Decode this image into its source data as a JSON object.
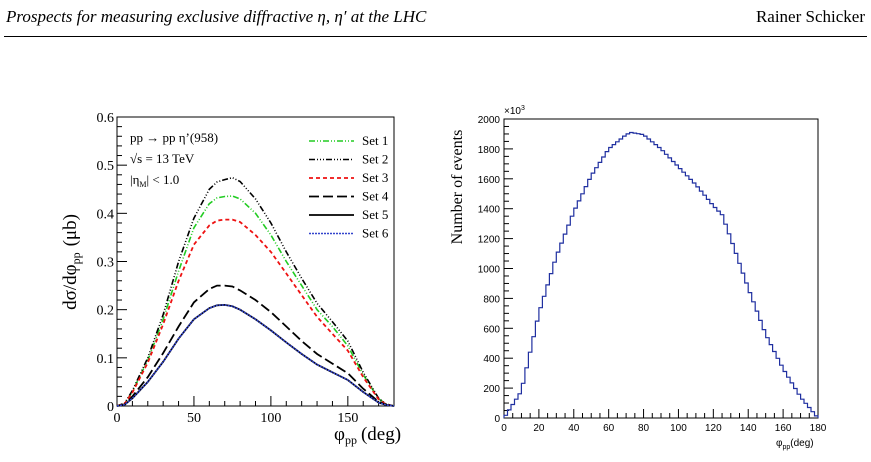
{
  "header": {
    "title": "Prospects for measuring exclusive diffractive η, η′ at the LHC",
    "author": "Rainer Schicker"
  },
  "chart_data": [
    {
      "type": "line",
      "process": "pp → pp η’(958)",
      "energy_root": "√s",
      "energy_value": " = 13 TeV",
      "cut_pre": "|η",
      "cut_sub": "M",
      "cut_post": "| < 1.0",
      "ylabel_main": "dσ/dφ",
      "ylabel_sub": "pp",
      "ylabel_unit": "(μb)",
      "xlabel_main": "φ",
      "xlabel_sub": "pp",
      "xlabel_unit": "(deg)",
      "xlim": [
        0,
        180
      ],
      "ylim": [
        0,
        0.6
      ],
      "xticks": [
        "0",
        "50",
        "100",
        "150"
      ],
      "yticks": [
        "0",
        "0.1",
        "0.2",
        "0.3",
        "0.4",
        "0.5",
        "0.6"
      ],
      "xtick_values": [
        0,
        50,
        100,
        150
      ],
      "ytick_values": [
        0,
        0.1,
        0.2,
        0.3,
        0.4,
        0.5,
        0.6
      ],
      "legend_position": "top-right",
      "x": [
        0,
        5,
        10,
        20,
        30,
        40,
        50,
        60,
        65,
        70,
        75,
        80,
        90,
        100,
        110,
        120,
        130,
        140,
        150,
        160,
        170,
        175,
        180
      ],
      "series": [
        {
          "name": "Set 1",
          "color": "#22cc22",
          "dash": "6 2 1 2 1 2",
          "width": 1.6,
          "values": [
            0,
            0.005,
            0.03,
            0.095,
            0.18,
            0.28,
            0.37,
            0.42,
            0.432,
            0.435,
            0.436,
            0.43,
            0.4,
            0.355,
            0.3,
            0.25,
            0.2,
            0.165,
            0.125,
            0.065,
            0.015,
            0.004,
            0
          ]
        },
        {
          "name": "Set 2",
          "color": "#000000",
          "dash": "6 2 1 2 1 2 1 2",
          "width": 1.6,
          "values": [
            0,
            0.006,
            0.032,
            0.1,
            0.19,
            0.3,
            0.39,
            0.45,
            0.465,
            0.47,
            0.474,
            0.466,
            0.43,
            0.38,
            0.32,
            0.265,
            0.213,
            0.175,
            0.135,
            0.07,
            0.016,
            0.004,
            0
          ]
        },
        {
          "name": "Set 3",
          "color": "#ee1111",
          "dash": "4 3",
          "width": 1.8,
          "values": [
            0,
            0.005,
            0.028,
            0.09,
            0.17,
            0.26,
            0.335,
            0.375,
            0.385,
            0.387,
            0.387,
            0.382,
            0.355,
            0.32,
            0.275,
            0.23,
            0.185,
            0.15,
            0.115,
            0.06,
            0.014,
            0.003,
            0
          ]
        },
        {
          "name": "Set 4",
          "color": "#000000",
          "dash": "10 4",
          "width": 1.8,
          "values": [
            0,
            0.003,
            0.02,
            0.06,
            0.11,
            0.165,
            0.215,
            0.243,
            0.25,
            0.25,
            0.248,
            0.24,
            0.22,
            0.195,
            0.165,
            0.135,
            0.108,
            0.088,
            0.068,
            0.036,
            0.009,
            0.002,
            0
          ]
        },
        {
          "name": "Set 5",
          "color": "#000000",
          "dash": "",
          "width": 1.8,
          "values": [
            0,
            0.003,
            0.016,
            0.05,
            0.092,
            0.14,
            0.18,
            0.203,
            0.209,
            0.21,
            0.207,
            0.2,
            0.18,
            0.157,
            0.132,
            0.108,
            0.086,
            0.07,
            0.054,
            0.029,
            0.007,
            0.002,
            0
          ]
        },
        {
          "name": "Set 6",
          "color": "#3344cc",
          "dash": "2 1",
          "width": 1.6,
          "values": [
            0,
            0.003,
            0.016,
            0.05,
            0.092,
            0.14,
            0.18,
            0.203,
            0.209,
            0.21,
            0.207,
            0.2,
            0.18,
            0.157,
            0.132,
            0.108,
            0.086,
            0.07,
            0.054,
            0.029,
            0.007,
            0.002,
            0
          ]
        }
      ]
    },
    {
      "type": "histogram",
      "ylabel": "Number of events",
      "y_multiplier": "×10",
      "y_multiplier_exp": "3",
      "xlabel_main": "φ",
      "xlabel_sub": "pp",
      "xlabel_unit": "(deg)",
      "xlim": [
        0,
        180
      ],
      "ylim": [
        0,
        2000
      ],
      "xticks": [
        "0",
        "20",
        "40",
        "60",
        "80",
        "100",
        "120",
        "140",
        "160",
        "180"
      ],
      "yticks": [
        "0",
        "200",
        "400",
        "600",
        "800",
        "1000",
        "1200",
        "1400",
        "1600",
        "1800",
        "2000"
      ],
      "xtick_values": [
        0,
        20,
        40,
        60,
        80,
        100,
        120,
        140,
        160,
        180
      ],
      "ytick_values": [
        0,
        200,
        400,
        600,
        800,
        1000,
        1200,
        1400,
        1600,
        1800,
        2000
      ],
      "color": "#1f2fa0",
      "x": [
        0,
        10,
        20,
        30,
        40,
        50,
        60,
        70,
        73,
        80,
        90,
        100,
        110,
        120,
        125,
        130,
        140,
        150,
        160,
        170,
        180
      ],
      "values": [
        0,
        180,
        700,
        1080,
        1380,
        1620,
        1800,
        1895,
        1910,
        1895,
        1800,
        1680,
        1560,
        1420,
        1360,
        1200,
        870,
        560,
        330,
        140,
        0
      ]
    }
  ]
}
